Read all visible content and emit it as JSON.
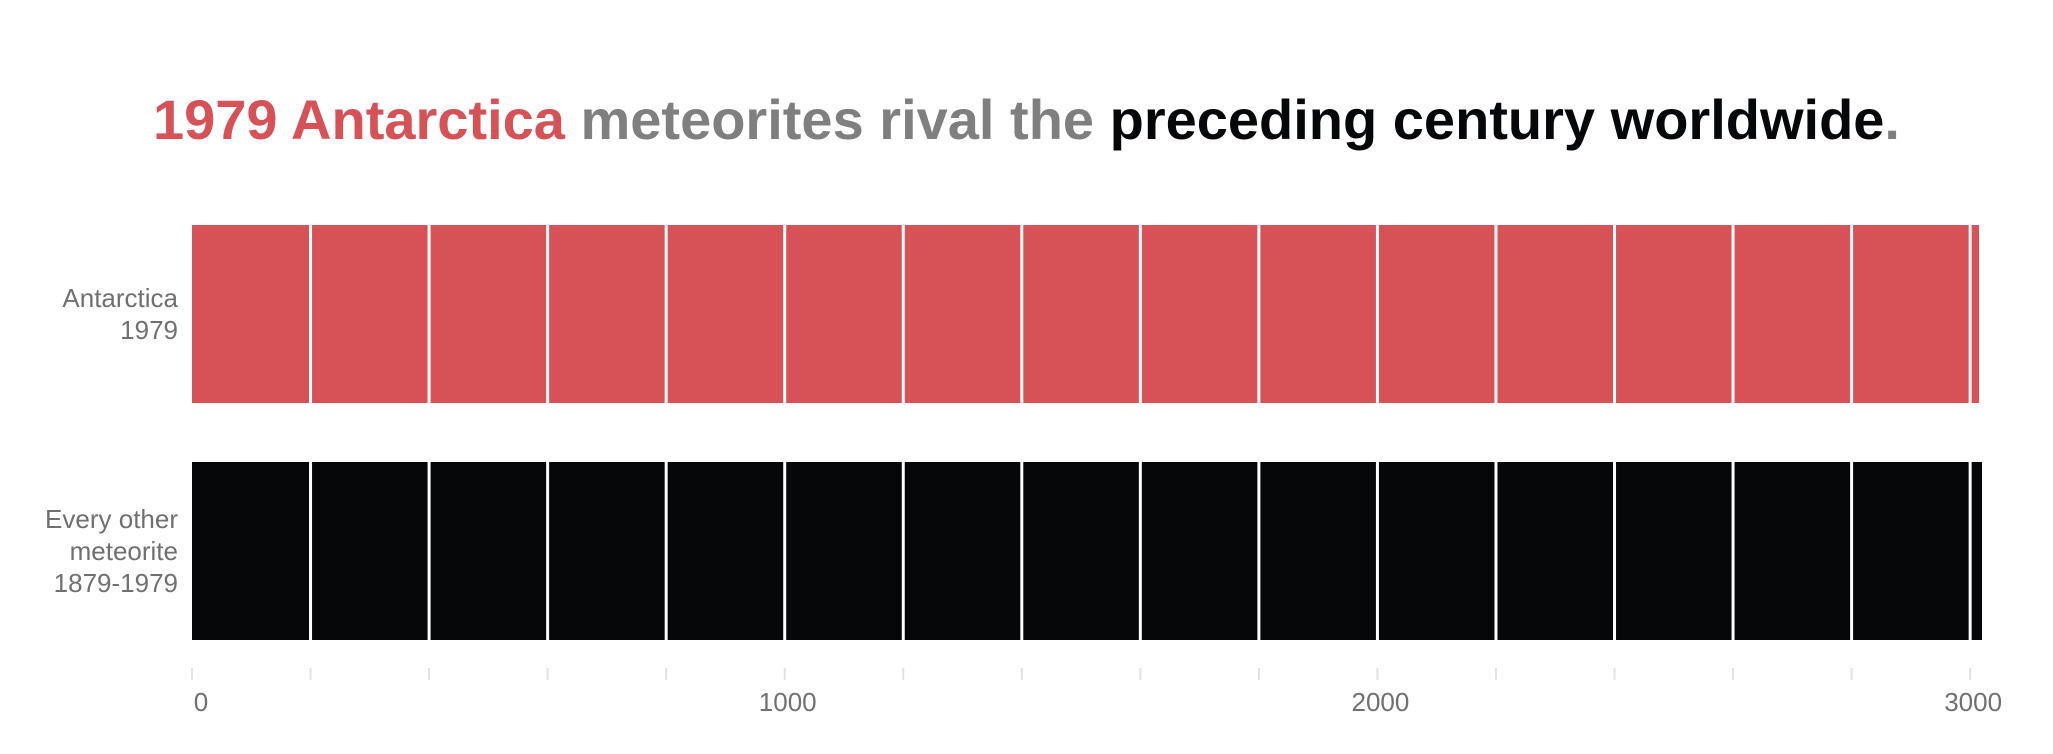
{
  "title": {
    "segments": [
      {
        "text": "1979 Antarctica",
        "color": "#d75257"
      },
      {
        "text": " meteorites rival the ",
        "color": "#7f7f7f"
      },
      {
        "text": "preceding century worldwide",
        "color": "#060709"
      },
      {
        "text": ".",
        "color": "#7f7f7f"
      }
    ]
  },
  "chart_data": {
    "type": "bar",
    "orientation": "horizontal",
    "segment_size": 200,
    "categories": [
      [
        "Antarctica",
        "1979"
      ],
      [
        "Every other",
        "meteorite",
        "1879-1979"
      ]
    ],
    "series": [
      {
        "values": [
          3015,
          3020
        ],
        "colors": [
          "#d75257",
          "#060709"
        ]
      }
    ],
    "x_ticks": [
      0,
      1000,
      2000,
      3000
    ],
    "x_minor_ticks": [
      200,
      400,
      600,
      800,
      1200,
      1400,
      1600,
      1800,
      2200,
      2400,
      2600,
      2800
    ],
    "xlim": [
      0,
      3020
    ],
    "grid": false,
    "legend": "none"
  }
}
